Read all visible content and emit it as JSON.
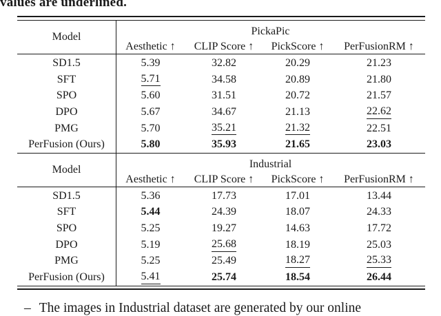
{
  "colors": {
    "ink": "#1a1a1a",
    "background": "#ffffff"
  },
  "caption": {
    "text": "values are underlined."
  },
  "footnote": {
    "bullet": "–",
    "text": "The images in Industrial dataset are generated by our online"
  },
  "table": {
    "model_header_label": "Model",
    "columns": [
      "Aesthetic ↑",
      "CLIP Score ↑",
      "PickScore ↑",
      "PerFusionRM ↑"
    ],
    "sections": [
      {
        "dataset": "PickaPic",
        "rows": [
          {
            "model": "SD1.5",
            "cells": [
              {
                "t": "5.39"
              },
              {
                "t": "32.82"
              },
              {
                "t": "20.29"
              },
              {
                "t": "21.23"
              }
            ]
          },
          {
            "model": "SFT",
            "cells": [
              {
                "t": "5.71",
                "s": "u"
              },
              {
                "t": "34.58"
              },
              {
                "t": "20.89"
              },
              {
                "t": "21.80"
              }
            ]
          },
          {
            "model": "SPO",
            "cells": [
              {
                "t": "5.60"
              },
              {
                "t": "31.51"
              },
              {
                "t": "20.72"
              },
              {
                "t": "21.57"
              }
            ]
          },
          {
            "model": "DPO",
            "cells": [
              {
                "t": "5.67"
              },
              {
                "t": "34.67"
              },
              {
                "t": "21.13"
              },
              {
                "t": "22.62",
                "s": "u"
              }
            ]
          },
          {
            "model": "PMG",
            "cells": [
              {
                "t": "5.70"
              },
              {
                "t": "35.21",
                "s": "u"
              },
              {
                "t": "21.32",
                "s": "u"
              },
              {
                "t": "22.51"
              }
            ]
          },
          {
            "model": "PerFusion (Ours)",
            "cells": [
              {
                "t": "5.80",
                "s": "b"
              },
              {
                "t": "35.93",
                "s": "b"
              },
              {
                "t": "21.65",
                "s": "b"
              },
              {
                "t": "23.03",
                "s": "b"
              }
            ]
          }
        ]
      },
      {
        "dataset": "Industrial",
        "rows": [
          {
            "model": "SD1.5",
            "cells": [
              {
                "t": "5.36"
              },
              {
                "t": "17.73"
              },
              {
                "t": "17.01"
              },
              {
                "t": "13.44"
              }
            ]
          },
          {
            "model": "SFT",
            "cells": [
              {
                "t": "5.44",
                "s": "b"
              },
              {
                "t": "24.39"
              },
              {
                "t": "18.07"
              },
              {
                "t": "24.33"
              }
            ]
          },
          {
            "model": "SPO",
            "cells": [
              {
                "t": "5.25"
              },
              {
                "t": "19.27"
              },
              {
                "t": "14.63"
              },
              {
                "t": "17.72"
              }
            ]
          },
          {
            "model": "DPO",
            "cells": [
              {
                "t": "5.19"
              },
              {
                "t": "25.68",
                "s": "u"
              },
              {
                "t": "18.19"
              },
              {
                "t": "25.03"
              }
            ]
          },
          {
            "model": "PMG",
            "cells": [
              {
                "t": "5.25"
              },
              {
                "t": "25.49"
              },
              {
                "t": "18.27",
                "s": "u"
              },
              {
                "t": "25.33",
                "s": "u"
              }
            ]
          },
          {
            "model": "PerFusion (Ours)",
            "cells": [
              {
                "t": "5.41",
                "s": "u"
              },
              {
                "t": "25.74",
                "s": "b"
              },
              {
                "t": "18.54",
                "s": "b"
              },
              {
                "t": "26.44",
                "s": "b"
              }
            ]
          }
        ]
      }
    ]
  }
}
